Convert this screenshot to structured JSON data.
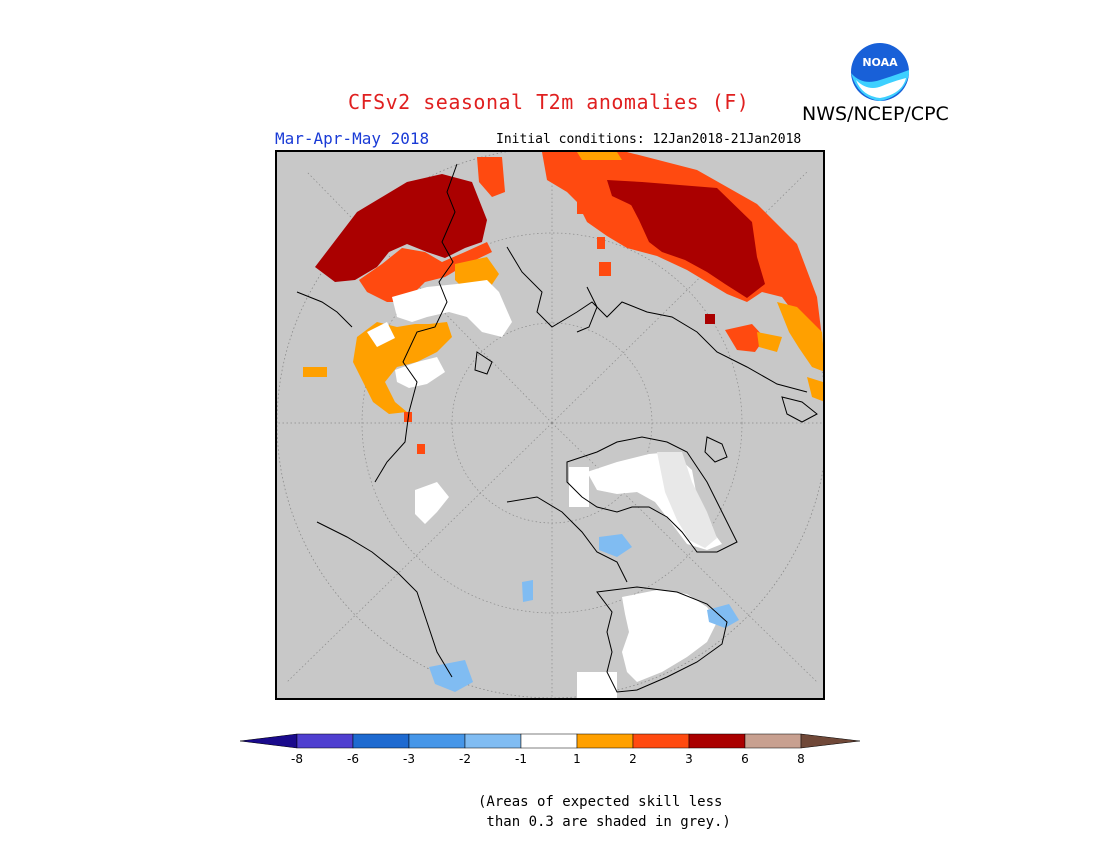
{
  "header": {
    "title": "CFSv2 seasonal T2m anomalies (F)",
    "org": "NWS/NCEP/CPC",
    "period": "Mar-Apr-May 2018",
    "initial_conditions": "Initial conditions: 12Jan2018-21Jan2018",
    "logo_text": "NOAA"
  },
  "legend": {
    "ticks": [
      "-8",
      "-6",
      "-3",
      "-2",
      "-1",
      "1",
      "2",
      "3",
      "6",
      "8"
    ],
    "colors": {
      "lt_m8": "#1a0a8c",
      "m8_m6": "#4f3fd0",
      "m6_m3": "#1e6ad0",
      "m3_m2": "#4696e8",
      "m2_m1": "#80bcf2",
      "m1_1": "#ffffff",
      "1_2": "#ffa000",
      "2_3": "#ff4a10",
      "3_6": "#aa0000",
      "6_8": "#c8a090",
      "gt_8": "#704838"
    }
  },
  "note": "(Areas of expected skill less\n than 0.3 are shaded in grey.)",
  "map_colors": {
    "background": "#c8c8c8",
    "coast": "#000000"
  }
}
